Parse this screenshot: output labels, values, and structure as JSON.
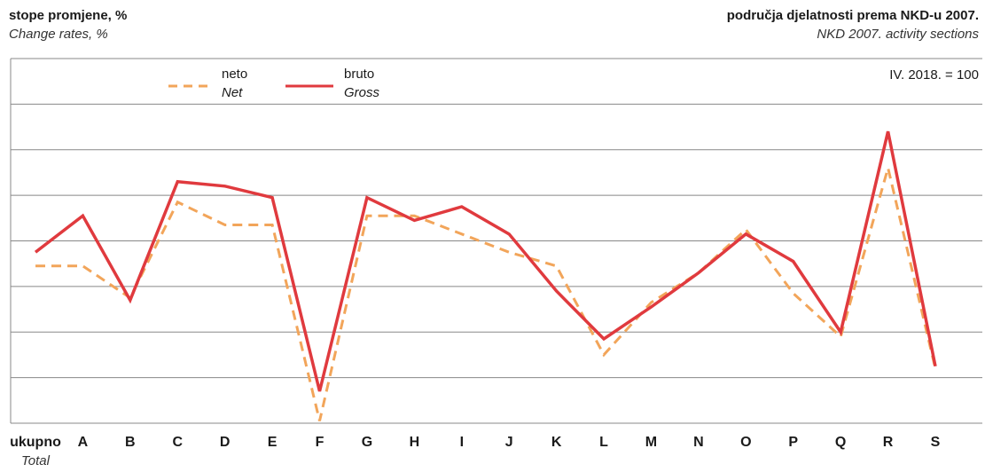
{
  "header": {
    "left_title": "stope promjene, %",
    "left_subtitle": "Change rates, %",
    "right_title": "područja djelatnosti prema NKD-u 2007.",
    "right_subtitle": "NKD 2007. activity sections",
    "base_note": "IV. 2018. = 100"
  },
  "colors": {
    "net": "#F2A55A",
    "gross": "#E03A3E",
    "grid": "#888888"
  },
  "chart_data": {
    "type": "line",
    "categories": [
      "ukupno",
      "A",
      "B",
      "C",
      "D",
      "E",
      "F",
      "G",
      "H",
      "I",
      "J",
      "K",
      "L",
      "M",
      "N",
      "O",
      "P",
      "Q",
      "R",
      "S"
    ],
    "category_sublabels": {
      "ukupno": "Total"
    },
    "y_gridlines": 8,
    "ylim": [
      0,
      8
    ],
    "grid": true,
    "legend_placement": "top-left",
    "series": [
      {
        "key": "net",
        "name": "neto",
        "name_en": "Net",
        "style": "dashed",
        "values": [
          3.45,
          3.45,
          2.75,
          4.85,
          4.35,
          4.35,
          0.05,
          4.55,
          4.55,
          4.15,
          3.75,
          3.45,
          1.5,
          2.65,
          3.3,
          4.25,
          2.85,
          1.9,
          5.6,
          1.2
        ]
      },
      {
        "key": "gross",
        "name": "bruto",
        "name_en": "Gross",
        "style": "solid",
        "values": [
          3.75,
          4.55,
          2.7,
          5.3,
          5.2,
          4.95,
          0.7,
          4.95,
          4.45,
          4.75,
          4.15,
          2.9,
          1.85,
          2.55,
          3.3,
          4.15,
          3.55,
          2.0,
          6.4,
          1.25
        ]
      }
    ]
  }
}
